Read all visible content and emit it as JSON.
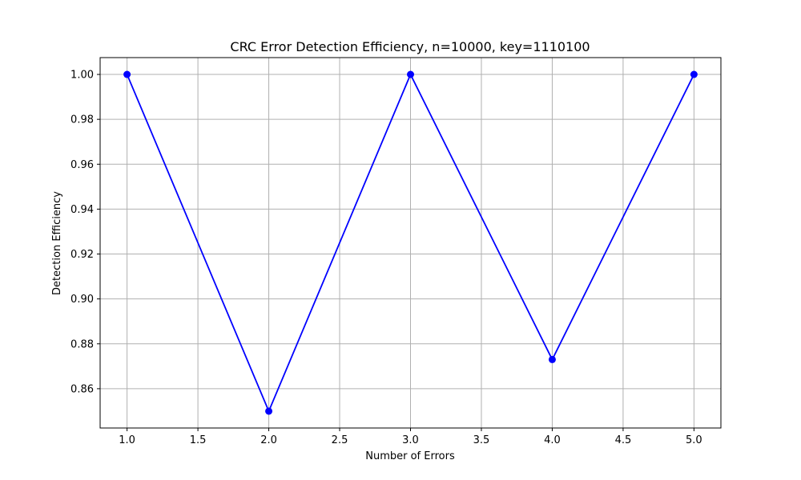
{
  "chart_data": {
    "type": "line",
    "title": "CRC Error Detection Efficiency, n=10000, key=1110100",
    "xlabel": "Number of Errors",
    "ylabel": "Detection Efficiency",
    "xlim": [
      0.81,
      5.19
    ],
    "ylim": [
      0.8425,
      1.0075
    ],
    "x_ticks": [
      1.0,
      1.5,
      2.0,
      2.5,
      3.0,
      3.5,
      4.0,
      4.5,
      5.0
    ],
    "x_tick_labels": [
      "1.0",
      "1.5",
      "2.0",
      "2.5",
      "3.0",
      "3.5",
      "4.0",
      "4.5",
      "5.0"
    ],
    "y_ticks": [
      0.86,
      0.88,
      0.9,
      0.92,
      0.94,
      0.96,
      0.98,
      1.0
    ],
    "y_tick_labels": [
      "0.86",
      "0.88",
      "0.90",
      "0.92",
      "0.94",
      "0.96",
      "0.98",
      "1.00"
    ],
    "grid": true,
    "series": [
      {
        "color": "#0000ff",
        "marker": "circle",
        "x": [
          1,
          2,
          3,
          4,
          5
        ],
        "y": [
          1.0,
          0.85,
          1.0,
          0.873,
          1.0
        ]
      }
    ]
  }
}
